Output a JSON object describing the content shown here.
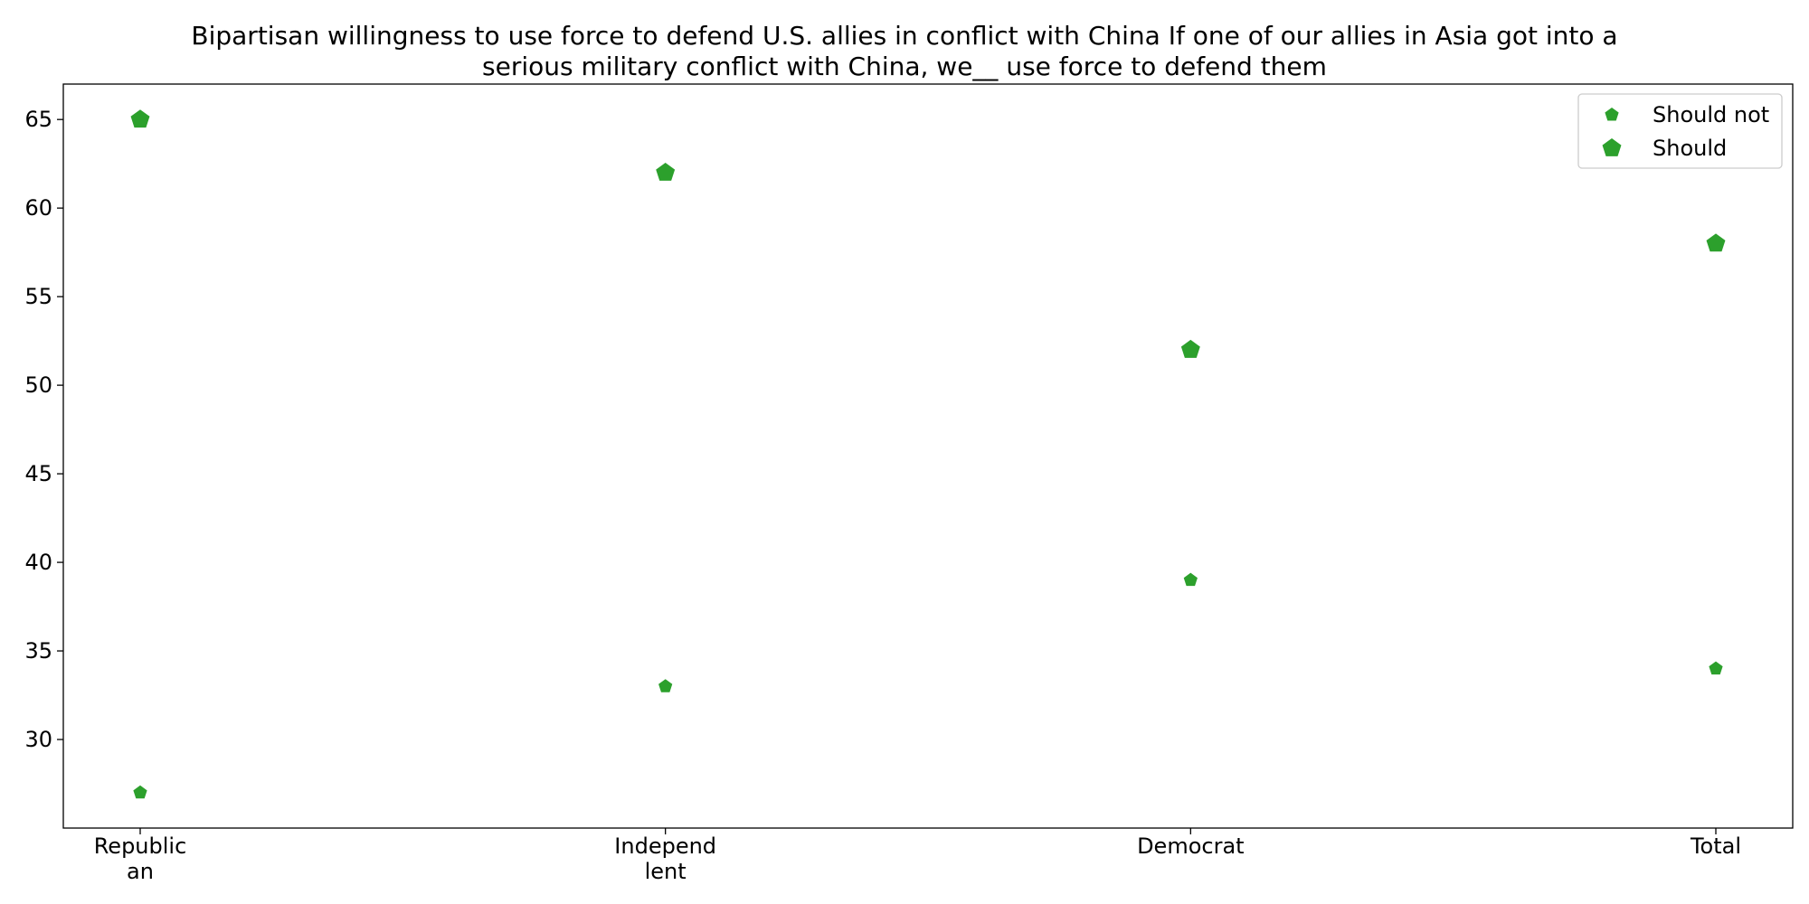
{
  "chart_data": {
    "type": "scatter",
    "title_lines": [
      "Bipartisan willingness to use force to defend U.S. allies in conflict with China If one of our allies in Asia got into a",
      "serious military conflict with China, we__ use force to defend them"
    ],
    "categories": [
      [
        "Republic",
        "an"
      ],
      [
        "Independ",
        "lent"
      ],
      [
        "Democrat"
      ],
      [
        "Total"
      ]
    ],
    "series": [
      {
        "name": "Should not",
        "values": [
          27,
          33,
          39,
          34
        ],
        "marker": "pentagon",
        "marker_size": "small",
        "color": "#2ca02c"
      },
      {
        "name": "Should",
        "values": [
          65,
          62,
          52,
          58
        ],
        "marker": "pentagon",
        "marker_size": "large",
        "color": "#2ca02c"
      }
    ],
    "xlabel": "",
    "ylabel": "",
    "ylim": [
      25,
      67
    ],
    "yticks": [
      30,
      35,
      40,
      45,
      50,
      55,
      60,
      65
    ],
    "grid": false,
    "legend_position": "top-right"
  }
}
